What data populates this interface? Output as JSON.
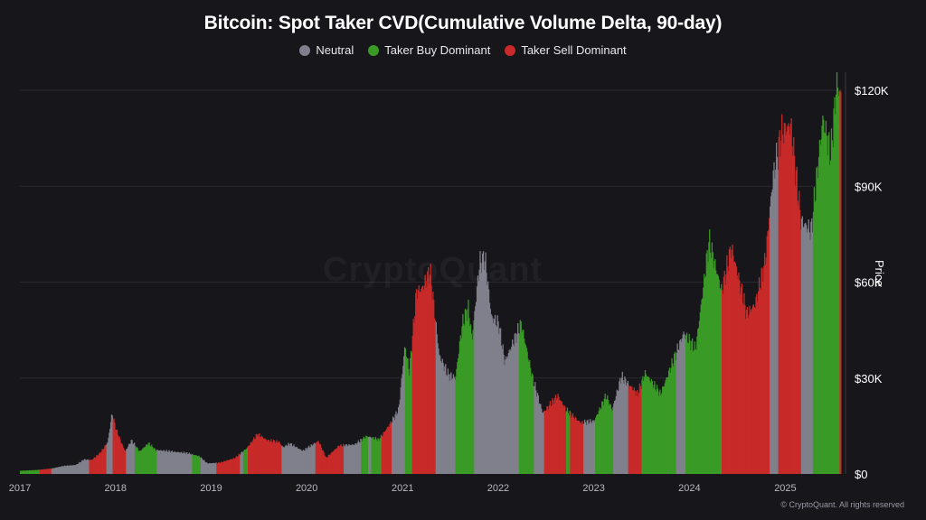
{
  "chart_data": {
    "type": "bar",
    "title": "Bitcoin: Spot Taker CVD(Cumulative Volume Delta, 90-day)",
    "ylabel": "Price",
    "ylim": [
      0,
      120000
    ],
    "y_ticks": [
      "$0",
      "$30K",
      "$60K",
      "$90K",
      "$120K"
    ],
    "x_ticks": [
      "2017",
      "2018",
      "2019",
      "2020",
      "2021",
      "2022",
      "2023",
      "2024",
      "2025"
    ],
    "grid": true,
    "legend_position": "top-center",
    "series": [
      {
        "name": "Neutral",
        "color": "#80808c"
      },
      {
        "name": "Taker Buy Dominant",
        "color": "#3a9a26"
      },
      {
        "name": "Taker Sell Dominant",
        "color": "#c72a28"
      }
    ],
    "price_points": [
      [
        "2017-01-01",
        1000
      ],
      [
        "2017-03-01",
        1200
      ],
      [
        "2017-05-01",
        1700
      ],
      [
        "2017-06-15",
        2500
      ],
      [
        "2017-08-01",
        2800
      ],
      [
        "2017-09-01",
        4500
      ],
      [
        "2017-10-01",
        4400
      ],
      [
        "2017-11-01",
        6500
      ],
      [
        "2017-12-01",
        10000
      ],
      [
        "2017-12-17",
        19000
      ],
      [
        "2018-01-01",
        14000
      ],
      [
        "2018-01-15",
        11000
      ],
      [
        "2018-02-05",
        7000
      ],
      [
        "2018-03-01",
        10500
      ],
      [
        "2018-04-01",
        7000
      ],
      [
        "2018-05-05",
        9600
      ],
      [
        "2018-06-01",
        7500
      ],
      [
        "2018-08-01",
        7000
      ],
      [
        "2018-10-01",
        6500
      ],
      [
        "2018-11-15",
        5500
      ],
      [
        "2018-12-15",
        3300
      ],
      [
        "2019-02-01",
        3500
      ],
      [
        "2019-04-01",
        5000
      ],
      [
        "2019-05-15",
        8000
      ],
      [
        "2019-06-26",
        12500
      ],
      [
        "2019-08-01",
        10500
      ],
      [
        "2019-09-15",
        10000
      ],
      [
        "2019-10-01",
        8300
      ],
      [
        "2019-10-26",
        9500
      ],
      [
        "2019-12-15",
        7200
      ],
      [
        "2020-02-13",
        10300
      ],
      [
        "2020-03-13",
        5000
      ],
      [
        "2020-05-01",
        8800
      ],
      [
        "2020-07-01",
        9200
      ],
      [
        "2020-08-15",
        11800
      ],
      [
        "2020-10-01",
        10700
      ],
      [
        "2020-11-15",
        16000
      ],
      [
        "2020-12-15",
        20000
      ],
      [
        "2021-01-08",
        40000
      ],
      [
        "2021-01-25",
        32000
      ],
      [
        "2021-02-21",
        57000
      ],
      [
        "2021-03-15",
        58000
      ],
      [
        "2021-04-14",
        63500
      ],
      [
        "2021-05-19",
        37000
      ],
      [
        "2021-06-22",
        31000
      ],
      [
        "2021-07-20",
        30000
      ],
      [
        "2021-08-15",
        47000
      ],
      [
        "2021-09-07",
        52000
      ],
      [
        "2021-09-21",
        42000
      ],
      [
        "2021-10-20",
        66000
      ],
      [
        "2021-11-10",
        67500
      ],
      [
        "2021-12-04",
        49000
      ],
      [
        "2022-01-01",
        47000
      ],
      [
        "2022-01-24",
        35000
      ],
      [
        "2022-03-28",
        47000
      ],
      [
        "2022-05-10",
        30000
      ],
      [
        "2022-06-18",
        19000
      ],
      [
        "2022-08-14",
        24500
      ],
      [
        "2022-09-15",
        20000
      ],
      [
        "2022-11-09",
        16000
      ],
      [
        "2022-12-31",
        16500
      ],
      [
        "2023-02-15",
        24500
      ],
      [
        "2023-03-10",
        20000
      ],
      [
        "2023-04-14",
        30500
      ],
      [
        "2023-06-15",
        25000
      ],
      [
        "2023-07-14",
        31500
      ],
      [
        "2023-09-11",
        25000
      ],
      [
        "2023-10-25",
        34500
      ],
      [
        "2023-12-08",
        44000
      ],
      [
        "2024-01-23",
        39000
      ],
      [
        "2024-02-28",
        63000
      ],
      [
        "2024-03-14",
        73000
      ],
      [
        "2024-05-01",
        57000
      ],
      [
        "2024-06-07",
        71000
      ],
      [
        "2024-08-05",
        50000
      ],
      [
        "2024-09-06",
        53000
      ],
      [
        "2024-10-15",
        67000
      ],
      [
        "2024-11-13",
        93000
      ],
      [
        "2024-12-17",
        107000
      ],
      [
        "2025-01-20",
        109000
      ],
      [
        "2025-02-28",
        79000
      ],
      [
        "2025-04-08",
        76000
      ],
      [
        "2025-05-22",
        111000
      ],
      [
        "2025-06-22",
        100000
      ],
      [
        "2025-07-14",
        122000
      ],
      [
        "2025-07-31",
        118000
      ]
    ],
    "regimes": [
      [
        "2017-01-01",
        "buy"
      ],
      [
        "2017-03-15",
        "sell"
      ],
      [
        "2017-05-01",
        "neutral"
      ],
      [
        "2017-09-20",
        "sell"
      ],
      [
        "2017-11-25",
        "neutral"
      ],
      [
        "2017-12-20",
        "sell"
      ],
      [
        "2018-02-10",
        "neutral"
      ],
      [
        "2018-03-15",
        "buy"
      ],
      [
        "2018-06-05",
        "neutral"
      ],
      [
        "2018-10-20",
        "buy"
      ],
      [
        "2018-11-20",
        "neutral"
      ],
      [
        "2019-01-20",
        "sell"
      ],
      [
        "2019-04-20",
        "neutral"
      ],
      [
        "2019-05-01",
        "buy"
      ],
      [
        "2019-05-20",
        "sell"
      ],
      [
        "2019-09-25",
        "neutral"
      ],
      [
        "2020-02-01",
        "sell"
      ],
      [
        "2020-05-20",
        "neutral"
      ],
      [
        "2020-07-25",
        "buy"
      ],
      [
        "2020-08-20",
        "neutral"
      ],
      [
        "2020-09-01",
        "buy"
      ],
      [
        "2020-10-10",
        "sell"
      ],
      [
        "2020-11-20",
        "neutral"
      ],
      [
        "2021-01-10",
        "buy"
      ],
      [
        "2021-02-05",
        "sell"
      ],
      [
        "2021-05-05",
        "neutral"
      ],
      [
        "2021-07-20",
        "buy"
      ],
      [
        "2021-10-01",
        "neutral"
      ],
      [
        "2022-03-20",
        "buy"
      ],
      [
        "2022-05-15",
        "neutral"
      ],
      [
        "2022-06-25",
        "sell"
      ],
      [
        "2022-09-15",
        "buy"
      ],
      [
        "2022-10-01",
        "sell"
      ],
      [
        "2022-11-20",
        "neutral"
      ],
      [
        "2023-01-05",
        "buy"
      ],
      [
        "2023-03-15",
        "neutral"
      ],
      [
        "2023-05-10",
        "sell"
      ],
      [
        "2023-07-01",
        "buy"
      ],
      [
        "2023-11-10",
        "neutral"
      ],
      [
        "2023-12-15",
        "buy"
      ],
      [
        "2024-05-01",
        "sell"
      ],
      [
        "2024-11-01",
        "neutral"
      ],
      [
        "2024-12-05",
        "sell"
      ],
      [
        "2025-03-01",
        "neutral"
      ],
      [
        "2025-04-15",
        "buy"
      ],
      [
        "2025-07-25",
        "sell"
      ]
    ]
  },
  "watermark": "CryptoQuant",
  "copyright": "© CryptoQuant. All rights reserved"
}
